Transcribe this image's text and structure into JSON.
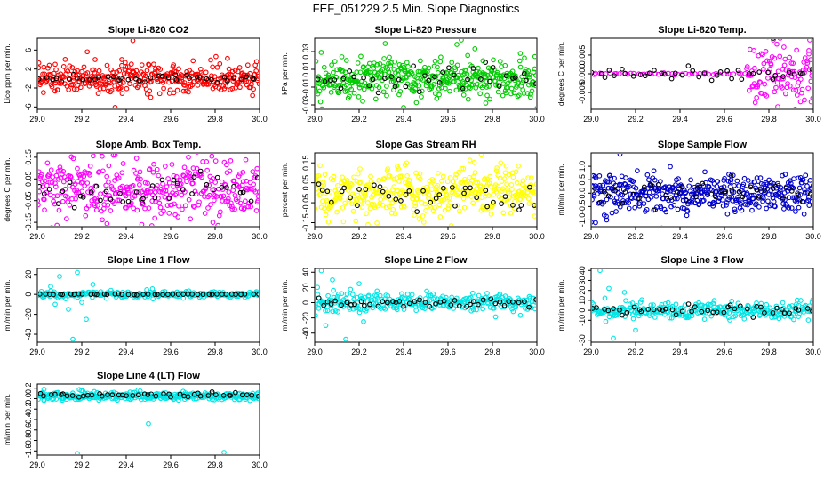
{
  "page_title": "FEF_051229  2.5 Min. Slope Diagnostics",
  "chart_data": [
    {
      "type": "scatter",
      "title": "Slope Li-820 CO2",
      "ylabel": "Lico ppm per min.",
      "xlabel": "",
      "xlim": [
        29.0,
        30.0
      ],
      "ylim": [
        -6.5,
        8.5
      ],
      "xticks": [
        "29.0",
        "29.2",
        "29.4",
        "29.6",
        "29.8",
        "30.0"
      ],
      "yticks": [
        "-6",
        "-2",
        "2",
        "6"
      ],
      "grid": false,
      "series": [
        {
          "color": "#ff0000",
          "x_range": [
            29.0,
            30.0
          ],
          "center": 0.0,
          "spread": 1.5,
          "n": 360,
          "outliers": [
            [
              29.35,
              -6.1
            ],
            [
              29.43,
              8.0
            ],
            [
              29.26,
              4.0
            ],
            [
              29.08,
              3.0
            ],
            [
              29.38,
              4.0
            ],
            [
              29.5,
              3.0
            ],
            [
              29.61,
              2.5
            ]
          ]
        },
        {
          "color": "#000000",
          "x_range": [
            29.0,
            30.0
          ],
          "center": 0.0,
          "spread": 0.4,
          "n": 40,
          "outliers": []
        }
      ]
    },
    {
      "type": "scatter",
      "title": "Slope Li-820 Pressure",
      "ylabel": "kPa per min.",
      "xlabel": "",
      "xlim": [
        29.0,
        30.0
      ],
      "ylim": [
        -0.035,
        0.045
      ],
      "xticks": [
        "29.0",
        "29.2",
        "29.4",
        "29.6",
        "29.8",
        "30.0"
      ],
      "yticks": [
        "-0.03",
        "-0.01",
        "0.01",
        "0.03"
      ],
      "grid": false,
      "series": [
        {
          "color": "#00cc00",
          "x_range": [
            29.0,
            30.0
          ],
          "center": 0.0,
          "spread": 0.011,
          "n": 420,
          "outliers": [
            [
              29.66,
              0.043
            ],
            [
              29.64,
              0.038
            ],
            [
              30.0,
              -0.034
            ],
            [
              29.4,
              -0.033
            ],
            [
              29.77,
              -0.028
            ]
          ]
        },
        {
          "color": "#000000",
          "x_range": [
            29.0,
            30.0
          ],
          "center": 0.0,
          "spread": 0.007,
          "n": 40,
          "outliers": []
        }
      ]
    },
    {
      "type": "scatter",
      "title": "Slope Li-820 Temp.",
      "ylabel": "degrees C per min.",
      "xlabel": "",
      "xlim": [
        29.0,
        30.0
      ],
      "ylim": [
        -0.0095,
        0.0095
      ],
      "xticks": [
        "29.0",
        "29.2",
        "29.4",
        "29.6",
        "29.8",
        "30.0"
      ],
      "yticks": [
        "-0.005",
        "0.000",
        "0.005"
      ],
      "grid": false,
      "series": [
        {
          "color": "#ff00ff",
          "x_range": [
            29.0,
            29.7
          ],
          "center": 0.0,
          "spread": 0.0001,
          "n": 45,
          "outliers": []
        },
        {
          "color": "#ff00ff",
          "x_range": [
            29.7,
            30.0
          ],
          "center": 0.0,
          "spread": 0.004,
          "n": 110,
          "outliers": [
            [
              29.84,
              -0.0088
            ],
            [
              29.98,
              0.0062
            ],
            [
              29.99,
              -0.0075
            ],
            [
              29.96,
              -0.007
            ]
          ]
        },
        {
          "color": "#000000",
          "x_range": [
            29.0,
            30.0
          ],
          "center": 0.0,
          "spread": 0.0008,
          "n": 40,
          "outliers": [
            [
              29.82,
              0.0095
            ]
          ]
        }
      ]
    },
    {
      "type": "scatter",
      "title": "Slope Amb. Box Temp.",
      "ylabel": "degrees C per min.",
      "xlabel": "",
      "xlim": [
        29.0,
        30.0
      ],
      "ylim": [
        -0.17,
        0.17
      ],
      "xticks": [
        "29.0",
        "29.2",
        "29.4",
        "29.6",
        "29.8",
        "30.0"
      ],
      "yticks": [
        "-0.15",
        "-0.05",
        "0.05",
        "0.15"
      ],
      "grid": false,
      "series": [
        {
          "color": "#ff00ff",
          "x_range": [
            29.0,
            30.0
          ],
          "center": 0.0,
          "spread": 0.07,
          "n": 380,
          "outliers": [
            [
              29.35,
              0.16
            ],
            [
              29.47,
              -0.16
            ],
            [
              29.68,
              0.15
            ],
            [
              29.79,
              -0.15
            ]
          ]
        },
        {
          "color": "#000000",
          "x_range": [
            29.0,
            30.0
          ],
          "center": 0.0,
          "spread": 0.045,
          "n": 40,
          "outliers": []
        }
      ]
    },
    {
      "type": "scatter",
      "title": "Slope Gas Stream RH",
      "ylabel": "percent per min.",
      "xlabel": "",
      "xlim": [
        29.0,
        30.0
      ],
      "ylim": [
        -0.17,
        0.2
      ],
      "xticks": [
        "29.0",
        "29.2",
        "29.4",
        "29.6",
        "29.8",
        "30.0"
      ],
      "yticks": [
        "-0.15",
        "-0.05",
        "0.05",
        "0.15"
      ],
      "grid": false,
      "series": [
        {
          "color": "#ffff00",
          "x_range": [
            29.0,
            30.0
          ],
          "center": 0.0,
          "spread": 0.06,
          "n": 400,
          "outliers": [
            [
              29.75,
              0.19
            ],
            [
              29.24,
              -0.16
            ]
          ]
        },
        {
          "color": "#000000",
          "x_range": [
            29.0,
            30.0
          ],
          "center": 0.0,
          "spread": 0.045,
          "n": 40,
          "outliers": []
        }
      ]
    },
    {
      "type": "scatter",
      "title": "Slope Sample Flow",
      "ylabel": "ml/min per min.",
      "xlabel": "",
      "xlim": [
        29.0,
        30.0
      ],
      "ylim": [
        -1.25,
        1.5
      ],
      "xticks": [
        "29.0",
        "29.2",
        "29.4",
        "29.6",
        "29.8",
        "30.0"
      ],
      "yticks": [
        "-1.0",
        "-0.5",
        "0.0",
        "0.5",
        "1.0"
      ],
      "grid": false,
      "series": [
        {
          "color": "#0000cc",
          "x_range": [
            29.0,
            30.0
          ],
          "center": 0.0,
          "spread": 0.35,
          "n": 420,
          "outliers": [
            [
              29.13,
              1.45
            ],
            [
              29.02,
              -1.1
            ],
            [
              29.07,
              -1.0
            ]
          ]
        },
        {
          "color": "#000000",
          "x_range": [
            29.0,
            30.0
          ],
          "center": 0.0,
          "spread": 0.2,
          "n": 40,
          "outliers": [
            [
              29.63,
              0.65
            ]
          ]
        }
      ]
    },
    {
      "type": "scatter",
      "title": "Slope Line 1 Flow",
      "ylabel": "ml/min per min.",
      "xlabel": "",
      "xlim": [
        29.0,
        30.0
      ],
      "ylim": [
        -48,
        26
      ],
      "xticks": [
        "29.0",
        "29.2",
        "29.4",
        "29.6",
        "29.8",
        "30.0"
      ],
      "yticks": [
        "-40",
        "-20",
        "0",
        "20"
      ],
      "grid": false,
      "series": [
        {
          "color": "#00e5e5",
          "x_range": [
            29.0,
            30.0
          ],
          "center": 0.0,
          "spread": 1.5,
          "n": 260,
          "outliers": [
            [
              29.16,
              -45
            ],
            [
              29.18,
              22
            ],
            [
              29.1,
              18
            ],
            [
              29.14,
              -15
            ],
            [
              29.22,
              -25
            ],
            [
              29.08,
              -10
            ],
            [
              29.25,
              10
            ],
            [
              29.06,
              8
            ],
            [
              29.2,
              -8
            ]
          ]
        },
        {
          "color": "#000000",
          "x_range": [
            29.0,
            30.0
          ],
          "center": 0.0,
          "spread": 0.2,
          "n": 45,
          "outliers": []
        }
      ]
    },
    {
      "type": "scatter",
      "title": "Slope Line 2 Flow",
      "ylabel": "ml/min per min.",
      "xlabel": "",
      "xlim": [
        29.0,
        30.0
      ],
      "ylim": [
        -52,
        45
      ],
      "xticks": [
        "29.0",
        "29.2",
        "29.4",
        "29.6",
        "29.8",
        "30.0"
      ],
      "yticks": [
        "-40",
        "-20",
        "0",
        "20",
        "40"
      ],
      "grid": false,
      "series": [
        {
          "color": "#00e5e5",
          "x_range": [
            29.0,
            30.0
          ],
          "center": 0.0,
          "spread": 6,
          "n": 300,
          "outliers": [
            [
              29.03,
              42
            ],
            [
              29.14,
              -48
            ],
            [
              29.08,
              30
            ],
            [
              29.2,
              25
            ],
            [
              29.05,
              -30
            ],
            [
              29.22,
              -25
            ]
          ]
        },
        {
          "color": "#000000",
          "x_range": [
            29.0,
            30.0
          ],
          "center": 0.0,
          "spread": 3,
          "n": 45,
          "outliers": []
        }
      ]
    },
    {
      "type": "scatter",
      "title": "Slope Line 3 Flow",
      "ylabel": "ml/min per min.",
      "xlabel": "",
      "xlim": [
        29.0,
        30.0
      ],
      "ylim": [
        -32,
        42
      ],
      "xticks": [
        "29.0",
        "29.2",
        "29.4",
        "29.6",
        "29.8",
        "30.0"
      ],
      "yticks": [
        "-30",
        "-10",
        "0",
        "10",
        "20",
        "30",
        "40"
      ],
      "grid": false,
      "series": [
        {
          "color": "#00e5e5",
          "x_range": [
            29.0,
            30.0
          ],
          "center": 0.0,
          "spread": 4,
          "n": 300,
          "outliers": [
            [
              29.04,
              40
            ],
            [
              29.1,
              -28
            ],
            [
              29.2,
              -20
            ],
            [
              29.08,
              22
            ],
            [
              29.15,
              18
            ]
          ]
        },
        {
          "color": "#000000",
          "x_range": [
            29.0,
            30.0
          ],
          "center": 0.0,
          "spread": 2.5,
          "n": 45,
          "outliers": []
        }
      ]
    },
    {
      "type": "scatter",
      "title": "Slope Line 4 (LT) Flow",
      "ylabel": "ml/min per min.",
      "xlabel": "",
      "xlim": [
        29.0,
        30.0
      ],
      "ylim": [
        -1.08,
        0.28
      ],
      "xticks": [
        "29.0",
        "29.2",
        "29.4",
        "29.6",
        "29.8",
        "30.0"
      ],
      "yticks": [
        "-1.0",
        "-0.8",
        "-0.6",
        "-0.4",
        "-0.2",
        "0.0",
        "0.2"
      ],
      "grid": false,
      "series": [
        {
          "color": "#00e5e5",
          "x_range": [
            29.0,
            30.0
          ],
          "center": 0.05,
          "spread": 0.04,
          "n": 340,
          "outliers": [
            [
              29.18,
              -1.05
            ],
            [
              29.84,
              -1.03
            ],
            [
              29.5,
              -0.48
            ],
            [
              29.03,
              0.18
            ]
          ]
        },
        {
          "color": "#000000",
          "x_range": [
            29.0,
            30.0
          ],
          "center": 0.07,
          "spread": 0.02,
          "n": 45,
          "outliers": []
        }
      ]
    }
  ]
}
